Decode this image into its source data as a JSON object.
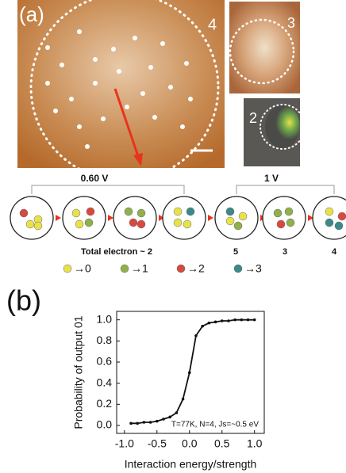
{
  "panel_a": {
    "label": "(a)",
    "image_labels": [
      "4",
      "3",
      "2"
    ],
    "voltages": [
      "0.60 V",
      "1 V"
    ],
    "electron_totals": [
      "Total electron ~ 2",
      "5",
      "3",
      "4"
    ],
    "legend": [
      "→0",
      "→1",
      "→2",
      "→3"
    ]
  },
  "chart_data": {
    "type": "line",
    "panel_label": "(b)",
    "x_label": "Interaction energy/strength",
    "y_label": "Probability of output 01",
    "annotation": "T=77K, N=4, Js=~0.5 eV",
    "x": [
      -0.9,
      -0.8,
      -0.7,
      -0.6,
      -0.5,
      -0.4,
      -0.3,
      -0.2,
      -0.1,
      0.0,
      0.1,
      0.2,
      0.3,
      0.4,
      0.5,
      0.6,
      0.7,
      0.8,
      0.9,
      1.0
    ],
    "series": [
      {
        "color": "#111111",
        "values": [
          0.02,
          0.02,
          0.03,
          0.03,
          0.04,
          0.06,
          0.08,
          0.12,
          0.25,
          0.5,
          0.85,
          0.94,
          0.97,
          0.98,
          0.99,
          0.99,
          1.0,
          1.0,
          1.0,
          1.0
        ]
      }
    ],
    "xlim": [
      -1.12,
      1.15
    ],
    "ylim": [
      -0.075,
      1.08
    ],
    "xticks": [
      {
        "value": -1,
        "label": "-1.0"
      },
      {
        "value": -0.5,
        "label": "-0.5"
      },
      {
        "value": 0,
        "label": "0.0"
      },
      {
        "value": 0.5,
        "label": "0.5"
      },
      {
        "value": 1,
        "label": "1.0"
      }
    ],
    "yticks": [
      {
        "value": 0,
        "label": "0.0"
      },
      {
        "value": 0.2,
        "label": "0.2"
      },
      {
        "value": 0.4,
        "label": "0.4"
      },
      {
        "value": 0.6,
        "label": "0.6"
      },
      {
        "value": 0.8,
        "label": "0.8"
      },
      {
        "value": 1,
        "label": "1.0"
      }
    ]
  }
}
